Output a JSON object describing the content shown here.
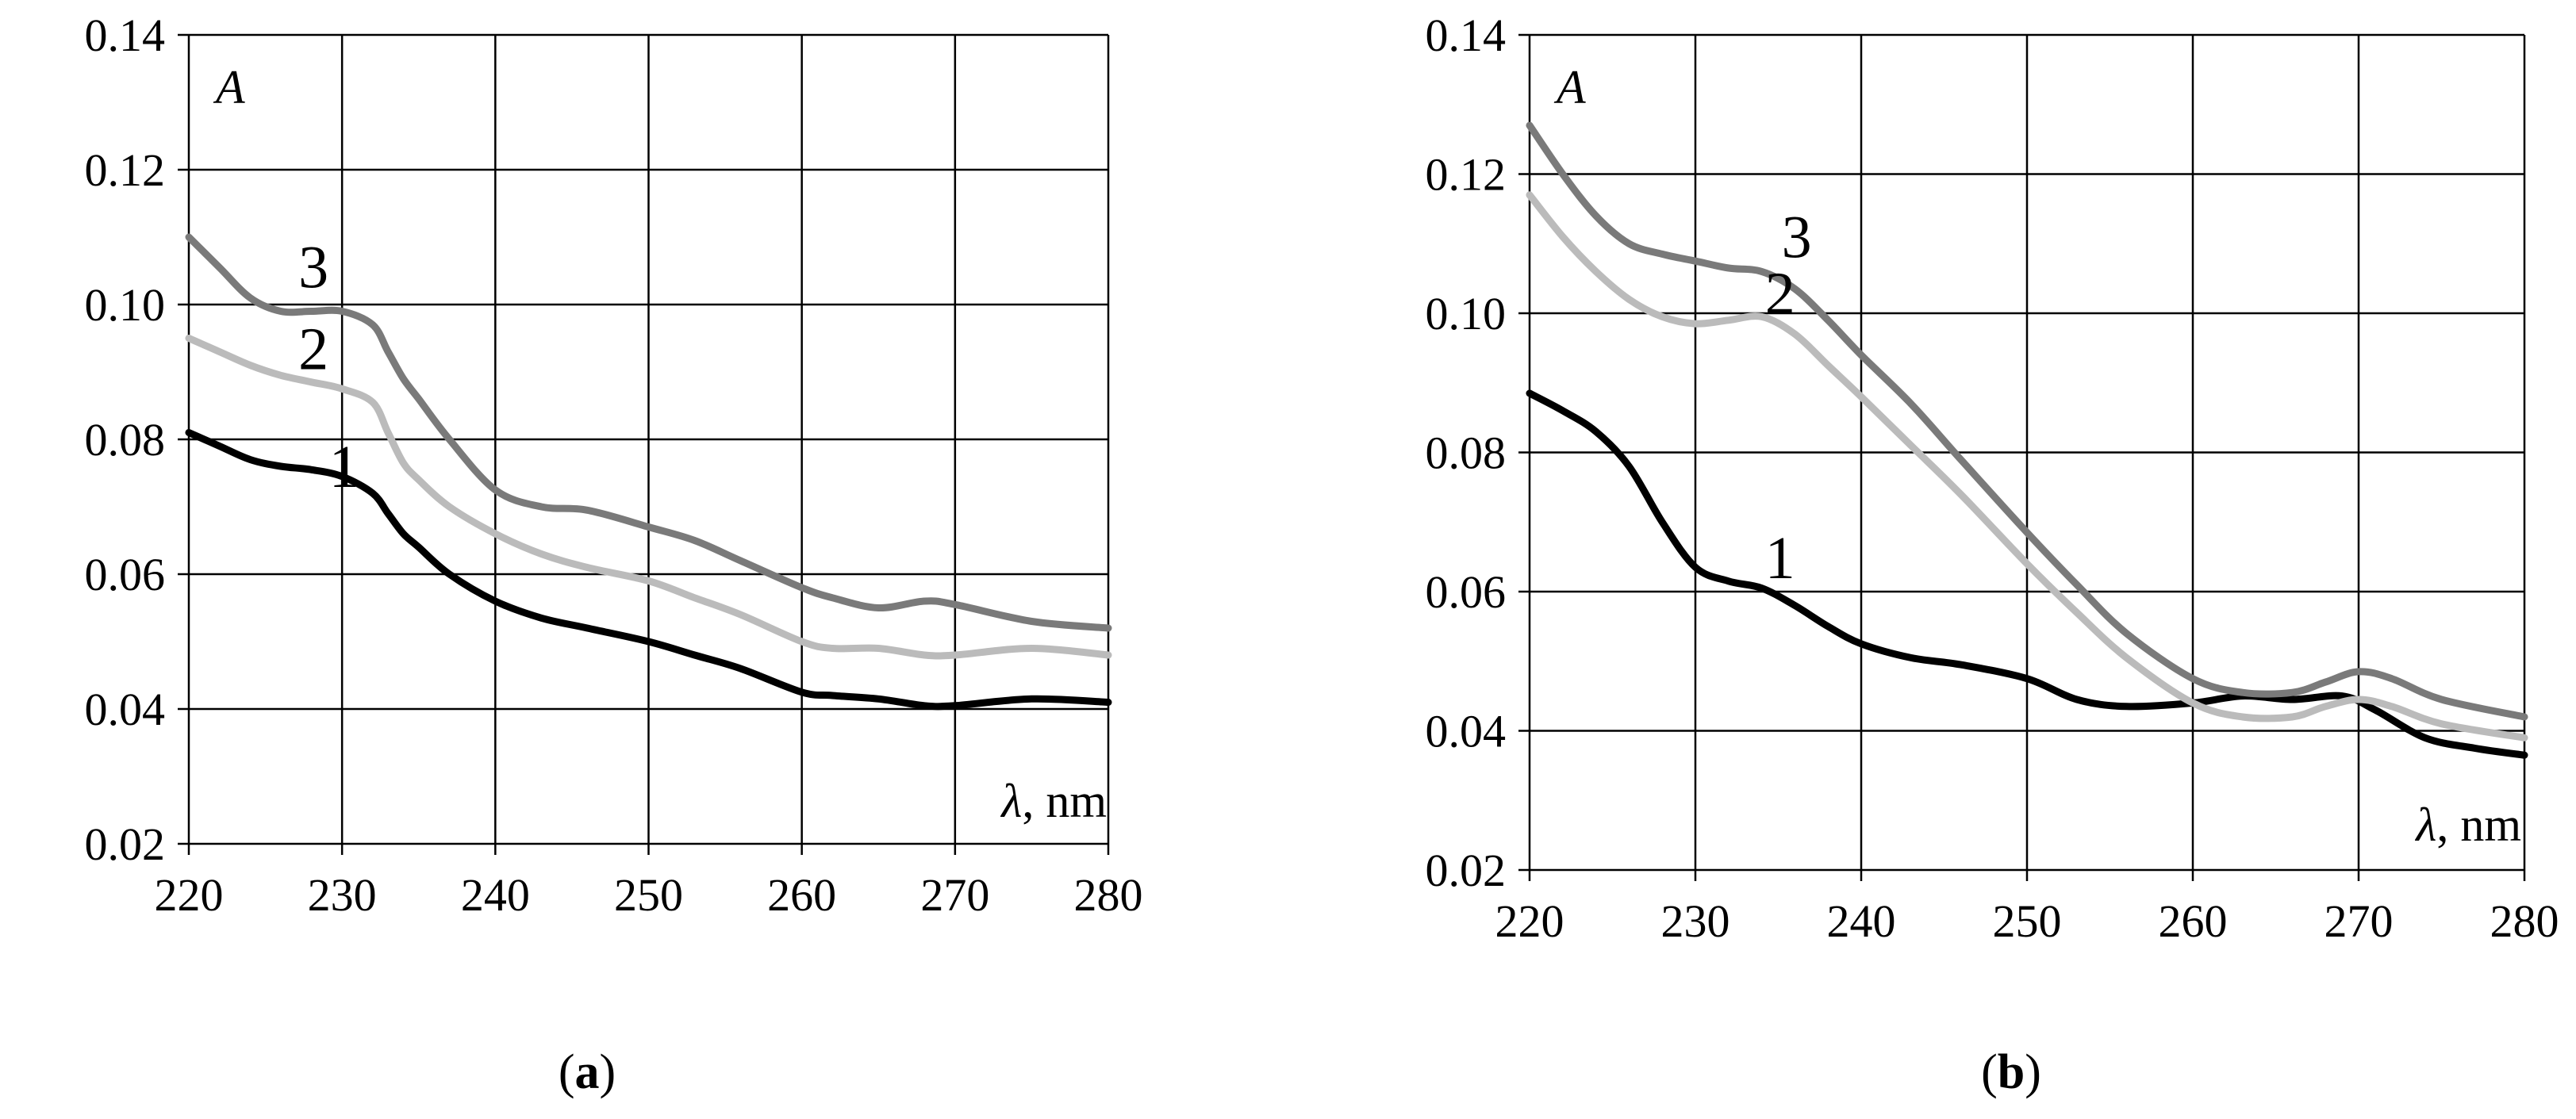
{
  "chart_data": [
    {
      "type": "line",
      "panel": "(a)",
      "caption_letter": "a",
      "xlabel": "λ, nm",
      "xlabel_symbol": "λ",
      "xlabel_unit": ", nm",
      "ylabel": "A",
      "xlim": [
        220,
        280
      ],
      "ylim": [
        0.02,
        0.14
      ],
      "x_ticks": [
        "220",
        "230",
        "240",
        "250",
        "260",
        "270",
        "280"
      ],
      "y_ticks": [
        "0.02",
        "0.04",
        "0.06",
        "0.08",
        "0.10",
        "0.12",
        "0.14"
      ],
      "grid": true,
      "series": [
        {
          "name": "1",
          "color": "#000000",
          "x": [
            220,
            222,
            224,
            226,
            228,
            230,
            232,
            233,
            234,
            235,
            237,
            240,
            243,
            246,
            250,
            253,
            256,
            260,
            262,
            265,
            268,
            270,
            275,
            280
          ],
          "y": [
            0.081,
            0.079,
            0.077,
            0.076,
            0.0755,
            0.0745,
            0.072,
            0.069,
            0.066,
            0.064,
            0.06,
            0.056,
            0.0535,
            0.052,
            0.05,
            0.048,
            0.046,
            0.0425,
            0.042,
            0.0415,
            0.0405,
            0.0405,
            0.0415,
            0.041
          ]
        },
        {
          "name": "2",
          "color": "#bbbbbb",
          "x": [
            220,
            222,
            224,
            226,
            228,
            230,
            232,
            233,
            234,
            235,
            237,
            240,
            243,
            246,
            250,
            253,
            256,
            260,
            262,
            265,
            268,
            270,
            275,
            280
          ],
          "y": [
            0.095,
            0.093,
            0.091,
            0.0895,
            0.0885,
            0.0875,
            0.0855,
            0.081,
            0.0765,
            0.074,
            0.07,
            0.066,
            0.063,
            0.061,
            0.059,
            0.0565,
            0.054,
            0.05,
            0.049,
            0.049,
            0.048,
            0.048,
            0.049,
            0.048
          ]
        },
        {
          "name": "3",
          "color": "#7a7a7a",
          "x": [
            220,
            222,
            224,
            226,
            228,
            230,
            232,
            233,
            234,
            235,
            237,
            240,
            243,
            246,
            250,
            253,
            256,
            260,
            262,
            265,
            268,
            270,
            275,
            280
          ],
          "y": [
            0.11,
            0.1055,
            0.101,
            0.099,
            0.099,
            0.099,
            0.097,
            0.093,
            0.089,
            0.086,
            0.08,
            0.0725,
            0.07,
            0.0695,
            0.067,
            0.065,
            0.062,
            0.058,
            0.0565,
            0.055,
            0.056,
            0.0555,
            0.053,
            0.052
          ]
        }
      ]
    },
    {
      "type": "line",
      "panel": "(b)",
      "caption_letter": "b",
      "xlabel": "λ, nm",
      "xlabel_symbol": "λ",
      "xlabel_unit": ", nm",
      "ylabel": "A",
      "xlim": [
        220,
        280
      ],
      "ylim": [
        0.02,
        0.14
      ],
      "x_ticks": [
        "220",
        "230",
        "240",
        "250",
        "260",
        "270",
        "280"
      ],
      "y_ticks": [
        "0.02",
        "0.04",
        "0.06",
        "0.08",
        "0.10",
        "0.12",
        "0.14"
      ],
      "grid": true,
      "series": [
        {
          "name": "1",
          "color": "#000000",
          "x": [
            220,
            222,
            224,
            226,
            228,
            230,
            232,
            234,
            236,
            238,
            240,
            243,
            246,
            250,
            253,
            256,
            260,
            263,
            266,
            269,
            271,
            274,
            277,
            280
          ],
          "y": [
            0.0885,
            0.086,
            0.083,
            0.078,
            0.07,
            0.0635,
            0.0615,
            0.0605,
            0.058,
            0.055,
            0.0525,
            0.0505,
            0.0495,
            0.0475,
            0.0445,
            0.0435,
            0.044,
            0.045,
            0.0445,
            0.045,
            0.043,
            0.039,
            0.0375,
            0.0365
          ]
        },
        {
          "name": "2",
          "color": "#bbbbbb",
          "x": [
            220,
            222,
            224,
            226,
            228,
            230,
            232,
            234,
            236,
            238,
            240,
            243,
            246,
            250,
            253,
            256,
            260,
            263,
            266,
            268,
            270,
            272,
            275,
            280
          ],
          "y": [
            0.117,
            0.111,
            0.106,
            0.102,
            0.0995,
            0.0985,
            0.099,
            0.0995,
            0.097,
            0.0925,
            0.088,
            0.081,
            0.074,
            0.064,
            0.057,
            0.0505,
            0.044,
            0.042,
            0.042,
            0.0435,
            0.0445,
            0.0435,
            0.041,
            0.039
          ]
        },
        {
          "name": "3",
          "color": "#7a7a7a",
          "x": [
            220,
            222,
            224,
            226,
            228,
            230,
            232,
            234,
            236,
            238,
            240,
            243,
            246,
            250,
            253,
            256,
            260,
            263,
            266,
            268,
            270,
            272,
            275,
            280
          ],
          "y": [
            0.127,
            0.12,
            0.114,
            0.11,
            0.1085,
            0.1075,
            0.1065,
            0.106,
            0.1035,
            0.099,
            0.094,
            0.087,
            0.079,
            0.0685,
            0.061,
            0.054,
            0.0475,
            0.0455,
            0.0455,
            0.047,
            0.0485,
            0.0475,
            0.0445,
            0.042
          ]
        }
      ]
    }
  ]
}
